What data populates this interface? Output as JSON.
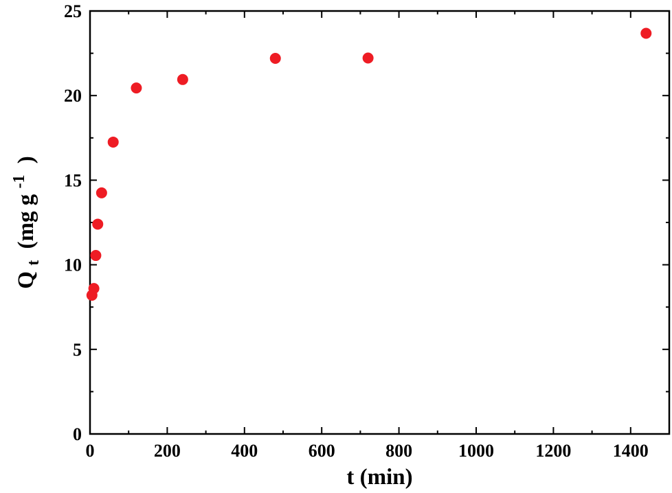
{
  "chart_data": {
    "type": "scatter",
    "title": "",
    "xlabel": "t (min)",
    "ylabel": {
      "main": "Q",
      "subscript": "t",
      "open": "(mg g",
      "superscript": "-1",
      "close": ")"
    },
    "xlim": [
      0,
      1500
    ],
    "ylim": [
      0,
      25
    ],
    "x_ticks": [
      0,
      200,
      400,
      600,
      800,
      1000,
      1200,
      1400
    ],
    "y_ticks": [
      0,
      5,
      10,
      15,
      20,
      25
    ],
    "x_tick_labels": [
      "0",
      "200",
      "400",
      "600",
      "800",
      "1000",
      "1200",
      "1400"
    ],
    "y_tick_labels": [
      "0",
      "5",
      "10",
      "15",
      "20",
      "25"
    ],
    "grid": false,
    "legend": "none",
    "marker_color": "#ee1c24",
    "series": [
      {
        "x": [
          5,
          10,
          15,
          20,
          30,
          60,
          120,
          240,
          480,
          720,
          1440
        ],
        "y": [
          8.2,
          8.6,
          10.55,
          12.4,
          14.25,
          17.25,
          20.45,
          20.95,
          22.2,
          22.22,
          23.68
        ]
      }
    ]
  }
}
